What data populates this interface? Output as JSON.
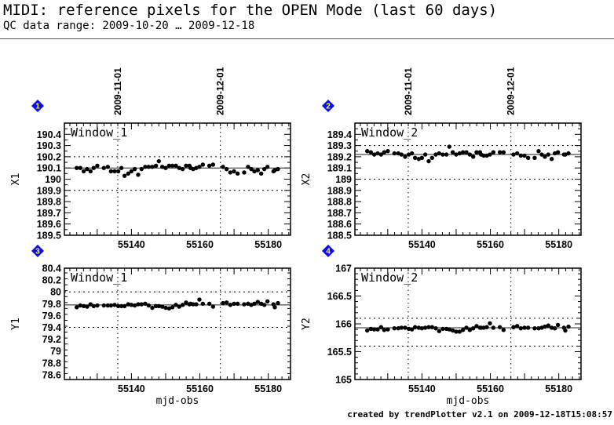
{
  "header": {
    "title": "MIDI: reference pixels for the OPEN Mode (last 60 days)",
    "subtitle": "QC data range: 2009-10-20 … 2009-12-18"
  },
  "footer": "created by trendPlotter v2.1 on 2009-12-18T15:08:57",
  "colors": {
    "badge": "#0a0aff",
    "badge_text": "#ffff00",
    "points": "#000000"
  },
  "chart_data": [
    {
      "type": "scatter",
      "badge": "1",
      "label": "Window_1",
      "ylabel": "X1",
      "xlabel": "",
      "xlim": [
        55120.4,
        55186.5
      ],
      "ylim": [
        189.5,
        190.5
      ],
      "yticks": [
        "189.5",
        "189.6",
        "189.7",
        "189.8",
        "189.9",
        "190",
        "190.1",
        "190.2",
        "190.3",
        "190.4"
      ],
      "xticks": [
        "55140",
        "55160",
        "55180"
      ],
      "date_markers": [
        {
          "mjd": 55136,
          "label": "2009-11-01"
        },
        {
          "mjd": 55166,
          "label": "2009-12-01"
        }
      ],
      "reference": 190.1,
      "limits": [
        190.2,
        189.9
      ],
      "x": [
        55124.0,
        55125.06,
        55126.05,
        55127.05,
        55128.04,
        55128.96,
        55130.03,
        55131.94,
        55133.09,
        55134.01,
        55135.08,
        55136.15,
        55137.07,
        55137.99,
        55139.06,
        55139.98,
        55140.97,
        55141.97,
        55142.96,
        55144.03,
        55145.03,
        55146.1,
        55147.17,
        55148.01,
        55149.01,
        55150.0,
        55151.0,
        55151.99,
        55152.99,
        55153.98,
        55154.98,
        55155.97,
        55156.96,
        55157.27,
        55158.04,
        55158.95,
        55159.87,
        55160.87,
        55162.78,
        55163.85,
        55166.76,
        55167.83,
        55168.9,
        55169.97,
        55171.04,
        55172.95,
        55174.1,
        55175.02,
        55175.94,
        55176.93,
        55177.93,
        55178.85,
        55179.76,
        55181.52,
        55181.91,
        55182.83
      ],
      "y": [
        190.1,
        190.1,
        190.07,
        190.09,
        190.07,
        190.1,
        190.12,
        190.1,
        190.11,
        190.07,
        190.07,
        190.07,
        190.1,
        190.03,
        190.05,
        190.07,
        190.09,
        190.04,
        190.09,
        190.11,
        190.11,
        190.11,
        190.12,
        190.16,
        190.11,
        190.1,
        190.12,
        190.12,
        190.12,
        190.1,
        190.09,
        190.12,
        190.12,
        190.1,
        190.09,
        190.1,
        190.11,
        190.13,
        190.12,
        190.13,
        190.11,
        190.09,
        190.06,
        190.07,
        190.05,
        190.06,
        190.11,
        190.09,
        190.07,
        190.08,
        190.05,
        190.09,
        190.11,
        190.07,
        190.08,
        190.09
      ]
    },
    {
      "type": "scatter",
      "badge": "2",
      "label": "Window_2",
      "ylabel": "X2",
      "xlabel": "",
      "xlim": [
        55120.4,
        55186.5
      ],
      "ylim": [
        188.5,
        189.5
      ],
      "yticks": [
        "188.5",
        "188.6",
        "188.7",
        "188.8",
        "188.9",
        "189",
        "189.1",
        "189.2",
        "189.3",
        "189.4"
      ],
      "xticks": [
        "55140",
        "55160",
        "55180"
      ],
      "date_markers": [
        {
          "mjd": 55136,
          "label": "2009-11-01"
        },
        {
          "mjd": 55166,
          "label": "2009-12-01"
        }
      ],
      "reference": 189.22,
      "limits": [
        189.3,
        189.0
      ],
      "x": [
        55124.0,
        55125.06,
        55126.05,
        55127.05,
        55128.04,
        55128.96,
        55130.03,
        55131.94,
        55133.09,
        55134.01,
        55135.08,
        55136.15,
        55137.07,
        55137.99,
        55139.06,
        55139.98,
        55140.97,
        55141.97,
        55142.96,
        55144.03,
        55145.03,
        55146.1,
        55147.17,
        55148.01,
        55149.01,
        55150.0,
        55151.0,
        55151.99,
        55152.99,
        55153.98,
        55154.98,
        55155.97,
        55156.96,
        55157.27,
        55158.04,
        55158.95,
        55159.87,
        55160.87,
        55162.78,
        55163.85,
        55166.76,
        55167.83,
        55168.9,
        55169.97,
        55171.04,
        55172.95,
        55174.1,
        55175.02,
        55175.94,
        55176.93,
        55177.93,
        55178.85,
        55179.76,
        55181.52,
        55181.91,
        55182.83
      ],
      "y": [
        189.25,
        189.24,
        189.22,
        189.23,
        189.22,
        189.24,
        189.25,
        189.23,
        189.23,
        189.22,
        189.2,
        189.22,
        189.23,
        189.19,
        189.18,
        189.19,
        189.22,
        189.16,
        189.19,
        189.22,
        189.23,
        189.22,
        189.22,
        189.29,
        189.24,
        189.22,
        189.23,
        189.24,
        189.24,
        189.22,
        189.2,
        189.24,
        189.24,
        189.22,
        189.21,
        189.21,
        189.22,
        189.24,
        189.24,
        189.24,
        189.22,
        189.23,
        189.21,
        189.21,
        189.19,
        189.19,
        189.25,
        189.22,
        189.2,
        189.22,
        189.18,
        189.23,
        189.24,
        189.22,
        189.22,
        189.23
      ]
    },
    {
      "type": "scatter",
      "badge": "3",
      "label": "Window_1",
      "ylabel": "Y1",
      "xlabel": "mjd-obs",
      "xlim": [
        55120.4,
        55186.5
      ],
      "ylim": [
        78.52,
        80.4
      ],
      "yticks": [
        "78.6",
        "78.8",
        "79",
        "79.2",
        "79.4",
        "79.6",
        "79.8",
        "80",
        "80.2",
        "80.4"
      ],
      "xticks": [
        "55140",
        "55160",
        "55180"
      ],
      "date_markers": [
        {
          "mjd": 55136,
          "label": ""
        },
        {
          "mjd": 55166,
          "label": ""
        }
      ],
      "reference": 79.78,
      "limits": [
        80.0,
        79.4
      ],
      "x": [
        55124.0,
        55125.06,
        55126.05,
        55127.05,
        55128.04,
        55128.96,
        55130.03,
        55131.94,
        55133.09,
        55134.01,
        55135.08,
        55136.15,
        55137.07,
        55137.99,
        55139.06,
        55139.98,
        55140.97,
        55141.97,
        55142.96,
        55144.03,
        55145.03,
        55146.1,
        55147.17,
        55148.01,
        55149.01,
        55150.0,
        55151.0,
        55151.99,
        55152.99,
        55153.98,
        55154.98,
        55155.97,
        55156.96,
        55157.27,
        55158.04,
        55158.95,
        55159.87,
        55160.87,
        55162.78,
        55163.85,
        55166.76,
        55167.83,
        55168.9,
        55169.97,
        55171.04,
        55172.95,
        55174.1,
        55175.02,
        55175.94,
        55176.93,
        55177.93,
        55178.85,
        55179.76,
        55181.52,
        55181.91,
        55182.83
      ],
      "y": [
        79.74,
        79.77,
        79.76,
        79.75,
        79.79,
        79.76,
        79.77,
        79.77,
        79.77,
        79.77,
        79.78,
        79.76,
        79.76,
        79.76,
        79.79,
        79.78,
        79.77,
        79.79,
        79.79,
        79.8,
        79.77,
        79.73,
        79.76,
        79.76,
        79.75,
        79.73,
        79.72,
        79.74,
        79.78,
        79.75,
        79.78,
        79.82,
        79.79,
        79.8,
        79.79,
        79.79,
        79.87,
        79.8,
        79.8,
        79.75,
        79.81,
        79.82,
        79.78,
        79.8,
        79.8,
        79.79,
        79.8,
        79.78,
        79.8,
        79.83,
        79.8,
        79.78,
        79.84,
        79.79,
        79.74,
        79.81
      ]
    },
    {
      "type": "scatter",
      "badge": "4",
      "label": "Window_2",
      "ylabel": "Y2",
      "xlabel": "mjd-obs",
      "xlim": [
        55120.4,
        55186.5
      ],
      "ylim": [
        165,
        167
      ],
      "yticks": [
        "165",
        "165.5",
        "166",
        "166.5",
        "167"
      ],
      "xticks": [
        "55140",
        "55160",
        "55180"
      ],
      "date_markers": [
        {
          "mjd": 55136,
          "label": ""
        },
        {
          "mjd": 55166,
          "label": ""
        }
      ],
      "reference": 165.93,
      "limits": [
        166.1,
        165.6
      ],
      "x": [
        55124.0,
        55125.06,
        55126.05,
        55127.05,
        55128.04,
        55128.96,
        55130.03,
        55131.94,
        55133.09,
        55134.01,
        55135.08,
        55136.15,
        55137.07,
        55137.99,
        55139.06,
        55139.98,
        55140.97,
        55141.97,
        55142.96,
        55144.03,
        55145.03,
        55146.1,
        55147.17,
        55148.01,
        55149.01,
        55150.0,
        55151.0,
        55151.99,
        55152.99,
        55153.98,
        55154.98,
        55155.97,
        55156.96,
        55157.27,
        55158.04,
        55158.95,
        55159.87,
        55160.87,
        55162.78,
        55163.85,
        55166.76,
        55167.83,
        55168.9,
        55169.97,
        55171.04,
        55172.95,
        55174.1,
        55175.02,
        55175.94,
        55176.93,
        55177.93,
        55178.85,
        55179.76,
        55181.52,
        55181.91,
        55182.83
      ],
      "y": [
        165.88,
        165.91,
        165.9,
        165.9,
        165.94,
        165.89,
        165.9,
        165.92,
        165.92,
        165.93,
        165.93,
        165.91,
        165.9,
        165.94,
        165.93,
        165.92,
        165.93,
        165.94,
        165.94,
        165.92,
        165.87,
        165.91,
        165.91,
        165.9,
        165.88,
        165.86,
        165.86,
        165.89,
        165.93,
        165.89,
        165.92,
        165.96,
        165.93,
        165.93,
        165.93,
        165.94,
        166.01,
        165.93,
        165.94,
        165.89,
        165.94,
        165.96,
        165.92,
        165.93,
        165.93,
        165.92,
        165.92,
        165.93,
        165.95,
        165.97,
        165.93,
        165.92,
        165.98,
        165.93,
        165.88,
        165.95
      ]
    }
  ]
}
